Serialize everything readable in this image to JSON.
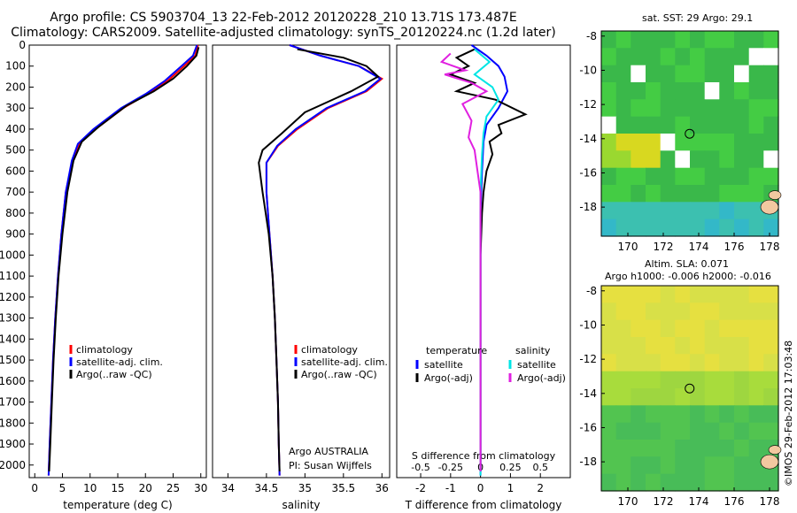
{
  "header": {
    "line1": "Argo profile: CS 5903704_13 22-Feb-2012 20120228_210 13.71S 173.487E",
    "line2": "Climatology: CARS2009. Satellite-adjusted climatology: synTS_20120224.nc (1.2d later)"
  },
  "footer": {
    "stamp": "©IMOS 29-Feb-2012 17:03:48"
  },
  "colors": {
    "climatology": "#ff0000",
    "satellite": "#0000ff",
    "argo": "#000000",
    "salinity_satellite": "#00e5e5",
    "salinity_argo": "#e020e0"
  },
  "chart_data": [
    {
      "type": "line",
      "xlabel": "temperature (deg C)",
      "ylabel": "",
      "xticks": [
        0,
        5,
        10,
        15,
        20,
        25,
        30
      ],
      "xlim": [
        -1,
        31
      ],
      "ylim": [
        2060,
        0
      ],
      "yticks": [
        0,
        100,
        200,
        300,
        400,
        500,
        600,
        700,
        800,
        900,
        1000,
        1100,
        1200,
        1300,
        1400,
        1500,
        1600,
        1700,
        1800,
        1900,
        2000
      ],
      "legend": [
        "climatology",
        "satellite-adj. clim.",
        "Argo(..raw -QC)"
      ],
      "series": [
        {
          "name": "climatology",
          "color": "#ff0000",
          "points": [
            [
              29.5,
              0
            ],
            [
              29,
              50
            ],
            [
              27,
              100
            ],
            [
              24,
              170
            ],
            [
              20.5,
              230
            ],
            [
              16,
              300
            ],
            [
              11,
              400
            ],
            [
              8,
              470
            ],
            [
              6.8,
              550
            ],
            [
              5.6,
              700
            ],
            [
              4.8,
              900
            ],
            [
              4.2,
              1100
            ],
            [
              3.7,
              1300
            ],
            [
              3.3,
              1500
            ],
            [
              3.0,
              1700
            ],
            [
              2.7,
              1900
            ],
            [
              2.5,
              2050
            ]
          ]
        },
        {
          "name": "satellite-adj. clim.",
          "color": "#0000ff",
          "points": [
            [
              29.3,
              0
            ],
            [
              28.6,
              50
            ],
            [
              26.5,
              100
            ],
            [
              23.5,
              170
            ],
            [
              20.2,
              230
            ],
            [
              15.6,
              300
            ],
            [
              10.6,
              400
            ],
            [
              7.8,
              470
            ],
            [
              6.7,
              550
            ],
            [
              5.6,
              700
            ],
            [
              4.8,
              900
            ],
            [
              4.2,
              1100
            ],
            [
              3.7,
              1300
            ],
            [
              3.3,
              1500
            ],
            [
              3.0,
              1700
            ],
            [
              2.7,
              1900
            ],
            [
              2.5,
              2050
            ]
          ]
        },
        {
          "name": "Argo(..raw -QC)",
          "color": "#000000",
          "points": [
            [
              29.6,
              10
            ],
            [
              29.2,
              50
            ],
            [
              27.5,
              100
            ],
            [
              25,
              160
            ],
            [
              21.5,
              220
            ],
            [
              16.5,
              290
            ],
            [
              11.5,
              390
            ],
            [
              8.5,
              460
            ],
            [
              7.0,
              550
            ],
            [
              5.9,
              700
            ],
            [
              5.0,
              900
            ],
            [
              4.3,
              1100
            ],
            [
              3.8,
              1300
            ],
            [
              3.4,
              1500
            ],
            [
              3.1,
              1700
            ],
            [
              2.8,
              1900
            ],
            [
              2.6,
              2030
            ]
          ]
        }
      ]
    },
    {
      "type": "line",
      "xlabel": "salinity",
      "ylabel": "",
      "xticks": [
        34,
        34.5,
        35,
        35.5,
        36
      ],
      "xlim": [
        33.8,
        36.1
      ],
      "ylim": [
        2060,
        0
      ],
      "legend": [
        "climatology",
        "satellite-adj. clim.",
        "Argo(..raw -QC)"
      ],
      "annotations": [
        "Argo AUSTRALIA",
        "PI: Susan Wijffels"
      ],
      "series": [
        {
          "name": "climatology",
          "color": "#ff0000",
          "points": [
            [
              34.8,
              0
            ],
            [
              35.2,
              50
            ],
            [
              35.7,
              100
            ],
            [
              36.0,
              160
            ],
            [
              35.8,
              220
            ],
            [
              35.3,
              300
            ],
            [
              34.9,
              400
            ],
            [
              34.65,
              480
            ],
            [
              34.5,
              560
            ],
            [
              34.5,
              700
            ],
            [
              34.54,
              900
            ],
            [
              34.58,
              1100
            ],
            [
              34.61,
              1300
            ],
            [
              34.63,
              1500
            ],
            [
              34.65,
              1700
            ],
            [
              34.66,
              1900
            ],
            [
              34.67,
              2050
            ]
          ]
        },
        {
          "name": "satellite-adj. clim.",
          "color": "#0000ff",
          "points": [
            [
              34.8,
              0
            ],
            [
              35.2,
              50
            ],
            [
              35.7,
              100
            ],
            [
              35.98,
              160
            ],
            [
              35.78,
              220
            ],
            [
              35.28,
              300
            ],
            [
              34.88,
              400
            ],
            [
              34.64,
              480
            ],
            [
              34.5,
              560
            ],
            [
              34.5,
              700
            ],
            [
              34.54,
              900
            ],
            [
              34.58,
              1100
            ],
            [
              34.61,
              1300
            ],
            [
              34.63,
              1500
            ],
            [
              34.65,
              1700
            ],
            [
              34.66,
              1900
            ],
            [
              34.67,
              2050
            ]
          ]
        },
        {
          "name": "Argo(..raw -QC)",
          "color": "#000000",
          "points": [
            [
              34.9,
              20
            ],
            [
              35.5,
              60
            ],
            [
              35.8,
              100
            ],
            [
              35.95,
              150
            ],
            [
              35.6,
              220
            ],
            [
              35.0,
              320
            ],
            [
              34.7,
              420
            ],
            [
              34.45,
              500
            ],
            [
              34.4,
              560
            ],
            [
              34.45,
              700
            ],
            [
              34.53,
              900
            ],
            [
              34.58,
              1100
            ],
            [
              34.61,
              1300
            ],
            [
              34.63,
              1500
            ],
            [
              34.65,
              1700
            ],
            [
              34.66,
              1900
            ],
            [
              34.67,
              2030
            ]
          ]
        }
      ]
    },
    {
      "type": "line",
      "xlabel": "T difference from climatology",
      "xlabel_top": "S difference from climatology",
      "xticks": [
        -2,
        -1,
        0,
        1,
        2
      ],
      "xticks_top": [
        "-0.5",
        "-0.25",
        "0",
        "0.25",
        "0.5"
      ],
      "xlim": [
        -2.8,
        3
      ],
      "ylim": [
        2060,
        0
      ],
      "legend": {
        "temperature_header": "temperature",
        "salinity_header": "salinity",
        "items": [
          {
            "label": "satellite",
            "color": "#0000ff"
          },
          {
            "label": "Argo(-adj)",
            "color": "#000000"
          },
          {
            "label": "satellite",
            "color": "#00e5e5"
          },
          {
            "label": "Argo(-adj)",
            "color": "#e020e0"
          }
        ]
      },
      "series": [
        {
          "name": "temperature satellite",
          "color": "#0000ff",
          "points": [
            [
              -0.3,
              0
            ],
            [
              0.2,
              50
            ],
            [
              0.6,
              100
            ],
            [
              0.8,
              150
            ],
            [
              0.9,
              220
            ],
            [
              0.6,
              300
            ],
            [
              0.2,
              380
            ],
            [
              0.1,
              460
            ],
            [
              0.05,
              600
            ],
            [
              0,
              800
            ],
            [
              0,
              1100
            ],
            [
              0,
              1500
            ],
            [
              0,
              2050
            ]
          ]
        },
        {
          "name": "temperature Argo(-adj)",
          "color": "#000000",
          "points": [
            [
              -0.2,
              20
            ],
            [
              -0.8,
              60
            ],
            [
              -0.4,
              100
            ],
            [
              -1.0,
              140
            ],
            [
              -0.2,
              180
            ],
            [
              -0.8,
              220
            ],
            [
              0.5,
              260
            ],
            [
              1.5,
              330
            ],
            [
              0.6,
              380
            ],
            [
              0.7,
              420
            ],
            [
              0.3,
              460
            ],
            [
              0.4,
              520
            ],
            [
              0.2,
              600
            ],
            [
              0.1,
              700
            ],
            [
              0.05,
              800
            ],
            [
              0,
              1000
            ],
            [
              0,
              1500
            ],
            [
              0,
              2030
            ]
          ]
        },
        {
          "name": "salinity satellite",
          "color": "#00e5e5",
          "points": [
            [
              -0.2,
              20
            ],
            [
              0.3,
              80
            ],
            [
              -0.2,
              140
            ],
            [
              0.4,
              200
            ],
            [
              0.6,
              260
            ],
            [
              0.2,
              340
            ],
            [
              0.1,
              420
            ],
            [
              0.05,
              520
            ],
            [
              0,
              700
            ],
            [
              0,
              1000
            ],
            [
              0,
              1500
            ],
            [
              0,
              2050
            ]
          ]
        },
        {
          "name": "salinity Argo(-adj)",
          "color": "#e020e0",
          "points": [
            [
              -1.0,
              40
            ],
            [
              -1.3,
              80
            ],
            [
              -0.5,
              120
            ],
            [
              -1.2,
              140
            ],
            [
              -0.3,
              180
            ],
            [
              0.2,
              220
            ],
            [
              -0.6,
              280
            ],
            [
              -0.3,
              360
            ],
            [
              -0.4,
              440
            ],
            [
              -0.2,
              500
            ],
            [
              -0.1,
              600
            ],
            [
              0,
              700
            ],
            [
              0,
              1000
            ],
            [
              0,
              1500
            ],
            [
              0,
              2030
            ]
          ]
        }
      ]
    },
    {
      "type": "heatmap",
      "title": "sat. SST: 29 Argo: 29.1",
      "xticks": [
        170,
        172,
        174,
        176,
        178
      ],
      "yticks": [
        -8,
        -10,
        -12,
        -14,
        -16,
        -18
      ],
      "xlim": [
        168.5,
        178.5
      ],
      "ylim": [
        -19.7,
        -7.7
      ],
      "marker": {
        "lon": 173.487,
        "lat": -13.71
      }
    },
    {
      "type": "heatmap",
      "title": "Altim. SLA: 0.071",
      "subtitle": "Argo h1000: -0.006 h2000: -0.016",
      "xticks": [
        170,
        172,
        174,
        176,
        178
      ],
      "yticks": [
        -8,
        -10,
        -12,
        -14,
        -16,
        -18
      ],
      "xlim": [
        168.5,
        178.5
      ],
      "ylim": [
        -19.7,
        -7.7
      ],
      "marker": {
        "lon": 173.487,
        "lat": -13.71
      }
    }
  ]
}
